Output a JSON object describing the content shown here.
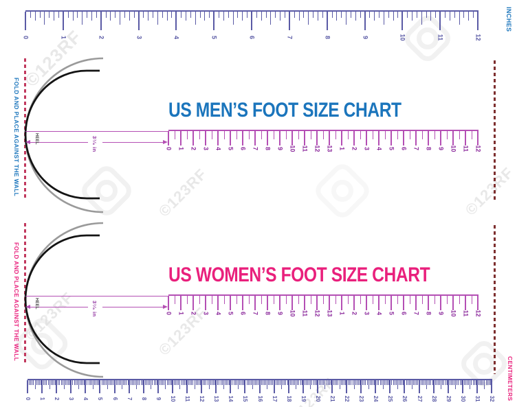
{
  "top_ruler": {
    "unit_label": "INCHES",
    "numbers": [
      "0",
      "1",
      "2",
      "3",
      "4",
      "5",
      "6",
      "7",
      "8",
      "9",
      "10",
      "11",
      "12"
    ]
  },
  "bottom_ruler": {
    "unit_label": "CENTIMETERS",
    "numbers": [
      "0",
      "1",
      "2",
      "3",
      "4",
      "5",
      "6",
      "7",
      "8",
      "9",
      "10",
      "11",
      "12",
      "13",
      "14",
      "15",
      "16",
      "17",
      "18",
      "19",
      "20",
      "21",
      "22",
      "23",
      "24",
      "25",
      "26",
      "27",
      "28",
      "29",
      "30",
      "31",
      "32"
    ]
  },
  "men": {
    "title": "US MEN’S FOOT SIZE CHART",
    "fold_instruction": "FOLD AND PLACE AGAINST THE WALL",
    "heel_label": "HEEL",
    "heel_offset_label": "3⁷⁄₈ in",
    "sizes": [
      "0",
      "1",
      "2",
      "3",
      "4",
      "5",
      "6",
      "7",
      "8",
      "9",
      "10",
      "11",
      "12",
      "13",
      "1",
      "2",
      "3",
      "4",
      "5",
      "6",
      "7",
      "8",
      "9",
      "10",
      "11",
      "12"
    ]
  },
  "women": {
    "title": "US WOMEN’S FOOT SIZE CHART",
    "fold_instruction": "FOLD AND PLACE AGAINST THE WALL",
    "heel_label": "HEEL",
    "heel_offset_label": "3⁷⁄₈ in",
    "sizes": [
      "0",
      "1",
      "2",
      "3",
      "4",
      "5",
      "6",
      "7",
      "8",
      "9",
      "10",
      "11",
      "12",
      "13",
      "1",
      "2",
      "3",
      "4",
      "5",
      "6",
      "7",
      "8",
      "9",
      "10",
      "11",
      "12"
    ]
  },
  "watermark": {
    "text": "©123RF"
  },
  "colors": {
    "men_accent": "#1b75bc",
    "women_accent": "#e9207c",
    "ruler_indigo": "#5a5aa5",
    "size_tick_magenta": "#b44fb4",
    "size_number_purple": "#8e2e9e",
    "fold_dash_crimson": "#c23a5f",
    "wall_dash_maroon": "#7e3030",
    "arc_gray": "#9a9a9a",
    "arc_black": "#141414"
  }
}
